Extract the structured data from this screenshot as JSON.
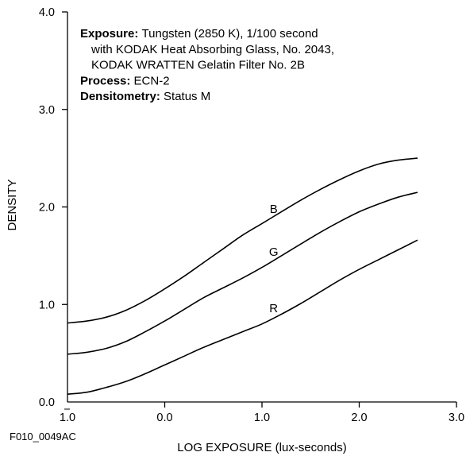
{
  "figure_id": "F010_0049AC",
  "notes": [
    {
      "label": "Exposure:",
      "text": "Tungsten (2850 K), 1/100 second",
      "indent": false
    },
    {
      "label": "",
      "text": "with KODAK Heat Absorbing Glass, No. 2043,",
      "indent": true
    },
    {
      "label": "",
      "text": "KODAK WRATTEN Gelatin Filter No. 2B",
      "indent": true
    },
    {
      "label": "Process:",
      "text": "ECN-2",
      "indent": false
    },
    {
      "label": "Densitometry:",
      "text": "Status M",
      "indent": false
    }
  ],
  "chart_data": {
    "type": "line",
    "title": "",
    "xlabel": "LOG EXPOSURE (lux-seconds)",
    "ylabel": "DENSITY",
    "xlim": [
      -1.0,
      3.0
    ],
    "ylim": [
      0.0,
      4.0
    ],
    "x_ticks": [
      {
        "value": -1.0,
        "label": "1.0",
        "bar": true
      },
      {
        "value": 0.0,
        "label": "0.0",
        "bar": false
      },
      {
        "value": 1.0,
        "label": "1.0",
        "bar": false
      },
      {
        "value": 2.0,
        "label": "2.0",
        "bar": false
      },
      {
        "value": 3.0,
        "label": "3.0",
        "bar": false
      }
    ],
    "y_ticks": [
      {
        "value": 0.0,
        "label": "0.0"
      },
      {
        "value": 1.0,
        "label": "1.0"
      },
      {
        "value": 2.0,
        "label": "2.0"
      },
      {
        "value": 3.0,
        "label": "3.0"
      },
      {
        "value": 4.0,
        "label": "4.0"
      }
    ],
    "grid": false,
    "series": [
      {
        "name": "B",
        "color": "#000000",
        "label_at": {
          "x": 1.12,
          "y": 1.98
        },
        "x": [
          -1.0,
          -0.8,
          -0.6,
          -0.4,
          -0.2,
          0.0,
          0.2,
          0.4,
          0.6,
          0.8,
          1.0,
          1.2,
          1.4,
          1.6,
          1.8,
          2.0,
          2.2,
          2.4,
          2.6
        ],
        "y": [
          0.81,
          0.83,
          0.87,
          0.94,
          1.04,
          1.16,
          1.29,
          1.43,
          1.57,
          1.71,
          1.83,
          1.95,
          2.07,
          2.18,
          2.28,
          2.37,
          2.44,
          2.48,
          2.5
        ]
      },
      {
        "name": "G",
        "color": "#000000",
        "label_at": {
          "x": 1.12,
          "y": 1.54
        },
        "x": [
          -1.0,
          -0.8,
          -0.6,
          -0.4,
          -0.2,
          0.0,
          0.2,
          0.4,
          0.6,
          0.8,
          1.0,
          1.2,
          1.4,
          1.6,
          1.8,
          2.0,
          2.2,
          2.4,
          2.6
        ],
        "y": [
          0.49,
          0.51,
          0.55,
          0.62,
          0.72,
          0.83,
          0.95,
          1.07,
          1.17,
          1.27,
          1.38,
          1.5,
          1.62,
          1.74,
          1.85,
          1.95,
          2.03,
          2.1,
          2.15
        ]
      },
      {
        "name": "R",
        "color": "#000000",
        "label_at": {
          "x": 1.12,
          "y": 0.96
        },
        "x": [
          -1.0,
          -0.8,
          -0.6,
          -0.4,
          -0.2,
          0.0,
          0.2,
          0.4,
          0.6,
          0.8,
          1.0,
          1.2,
          1.4,
          1.6,
          1.8,
          2.0,
          2.2,
          2.4,
          2.6
        ],
        "y": [
          0.08,
          0.1,
          0.15,
          0.21,
          0.29,
          0.38,
          0.47,
          0.56,
          0.64,
          0.72,
          0.8,
          0.9,
          1.01,
          1.13,
          1.25,
          1.36,
          1.46,
          1.56,
          1.66
        ]
      }
    ]
  }
}
